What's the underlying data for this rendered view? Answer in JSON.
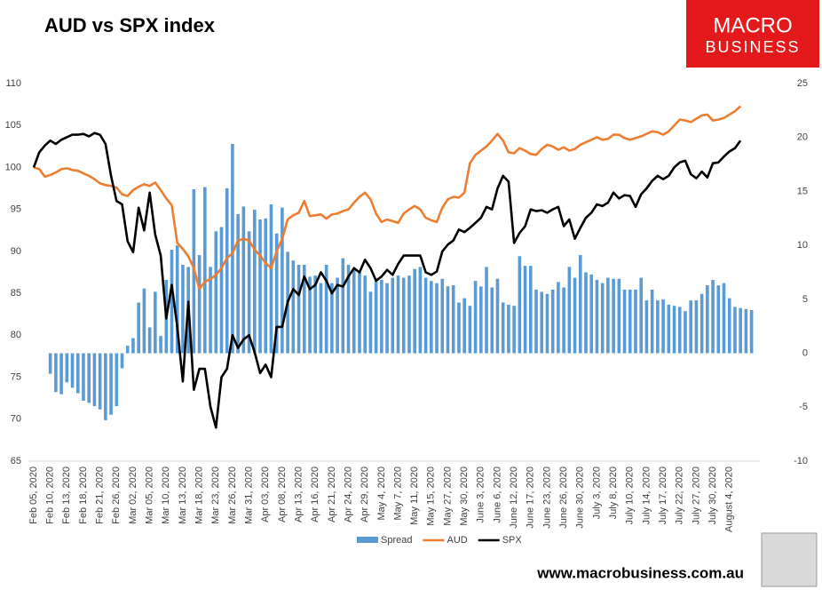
{
  "chart_data": {
    "type": "bar",
    "title": "AUD vs SPX index",
    "logo": [
      "MACRO",
      "BUSINESS"
    ],
    "footer": "www.macrobusiness.com.au",
    "categories": [
      "Feb 05, 2020",
      null,
      null,
      "Feb 10, 2020",
      null,
      null,
      "Feb 13, 2020",
      null,
      null,
      "Feb 18, 2020",
      null,
      null,
      "Feb 21, 2020",
      null,
      null,
      "Feb 26, 2020",
      null,
      null,
      "Mar 02, 2020",
      null,
      null,
      "Mar 05, 2020",
      null,
      null,
      "Mar 10, 2020",
      null,
      null,
      "Mar 13, 2020",
      null,
      null,
      "Mar 18, 2020",
      null,
      null,
      "Mar 23, 2020",
      null,
      null,
      "Mar 26, 2020",
      null,
      null,
      "Mar 31, 2020",
      null,
      null,
      "Apr 03, 2020",
      null,
      null,
      "Apr 08, 2020",
      null,
      null,
      "Apr 13, 2020",
      null,
      null,
      "Apr 16, 2020",
      null,
      null,
      "Apr 21, 2020",
      null,
      null,
      "Apr 24, 2020",
      null,
      null,
      "Apr 29, 2020",
      null,
      null,
      "May 4, 2020",
      null,
      null,
      "May 7, 2020",
      null,
      null,
      "May 11, 2020",
      null,
      null,
      "May 15, 2020",
      null,
      null,
      "May 27, 2020",
      null,
      null,
      "May 30, 2020",
      null,
      null,
      "June 3, 2020",
      null,
      null,
      "June 6, 2020",
      null,
      null,
      "June 12, 2020",
      null,
      null,
      "June 17, 2020",
      null,
      null,
      "June 23, 2020",
      null,
      null,
      "June 26, 2020",
      null,
      null,
      "June 30, 2020",
      null,
      null,
      "July 3, 2020",
      null,
      null,
      "July 8, 2020",
      null,
      null,
      "July 10, 2020",
      null,
      null,
      "July 14, 2020",
      null,
      null,
      "July 17, 2020",
      null,
      null,
      "July 22, 2020",
      null,
      null,
      "July 27, 2020",
      null,
      null,
      "July 30, 2020",
      null,
      null,
      "August 4, 2020",
      null,
      null,
      null,
      null
    ],
    "series": [
      {
        "name": "Spread",
        "type": "bar",
        "axis": "y2",
        "color": "#5b9bd5",
        "values": [
          null,
          null,
          null,
          -1.9,
          -3.6,
          -3.8,
          -2.7,
          -3.2,
          -3.7,
          -4.4,
          -4.6,
          -4.9,
          -5.2,
          -6.2,
          -5.7,
          -4.9,
          -1.4,
          0.7,
          1.4,
          4.7,
          6.0,
          2.4,
          5.7,
          1.6,
          6.8,
          9.6,
          10.0,
          8.2,
          8.0,
          15.2,
          9.1,
          15.4,
          8.0,
          11.3,
          11.7,
          15.3,
          19.4,
          12.9,
          13.6,
          11.3,
          13.3,
          12.4,
          12.5,
          13.8,
          11.1,
          13.5,
          9.4,
          8.6,
          8.2,
          8.2,
          7.1,
          7.2,
          6.5,
          8.2,
          6.5,
          7.0,
          8.8,
          8.2,
          7.7,
          7.5,
          7.2,
          5.7,
          6.7,
          6.8,
          6.5,
          7.0,
          7.2,
          7.0,
          7.2,
          7.8,
          8.0,
          7.0,
          6.7,
          6.5,
          6.9,
          6.2,
          6.3,
          4.7,
          5.1,
          4.4,
          6.7,
          6.2,
          8.0,
          6.1,
          6.9,
          4.7,
          4.5,
          4.4,
          9.0,
          8.1,
          8.1,
          5.9,
          5.7,
          5.5,
          5.9,
          6.6,
          6.1,
          8.0,
          7.0,
          9.1,
          7.5,
          7.3,
          6.8,
          6.5,
          7.0,
          6.9,
          6.9,
          5.9,
          5.9,
          5.9,
          7.0,
          4.9,
          5.9,
          4.9,
          5.0,
          4.5,
          4.4,
          4.3,
          3.9,
          4.9,
          4.9,
          5.5,
          6.3,
          6.8,
          6.3,
          6.5,
          5.1,
          4.3,
          4.2,
          4.1,
          4.0
        ]
      },
      {
        "name": "AUD",
        "type": "line",
        "color": "#ed7d31",
        "values": [
          100,
          99.8,
          98.9,
          99.1,
          99.4,
          99.8,
          99.9,
          99.7,
          99.6,
          99.3,
          99.0,
          98.6,
          98.1,
          97.9,
          97.8,
          97.6,
          96.8,
          96.6,
          97.3,
          97.7,
          98.0,
          97.8,
          98.2,
          97.3,
          96.3,
          95.5,
          91.0,
          90.3,
          89.4,
          88.0,
          85.5,
          86.4,
          86.7,
          87.2,
          88.0,
          89.2,
          89.8,
          91.3,
          91.5,
          91.3,
          90.2,
          89.5,
          88.6,
          88.0,
          90.0,
          91.5,
          93.8,
          94.3,
          94.6,
          96.0,
          94.2,
          94.3,
          94.4,
          93.9,
          94.4,
          94.5,
          94.8,
          95.0,
          95.8,
          96.5,
          97.0,
          96.2,
          94.5,
          93.5,
          93.8,
          93.6,
          93.4,
          94.5,
          95.0,
          95.4,
          95.0,
          94.0,
          93.7,
          93.5,
          95.2,
          96.2,
          96.5,
          96.4,
          97.0,
          100.5,
          101.5,
          102.0,
          102.5,
          103.2,
          104.0,
          103.2,
          101.8,
          101.7,
          102.3,
          102.0,
          101.6,
          101.5,
          102.2,
          102.7,
          102.5,
          102.1,
          102.4,
          102.0,
          102.2,
          102.7,
          103.0,
          103.3,
          103.6,
          103.3,
          103.4,
          103.9,
          103.9,
          103.5,
          103.3,
          103.5,
          103.7,
          104.0,
          104.3,
          104.2,
          103.9,
          104.3,
          105.0,
          105.7,
          105.6,
          105.4,
          105.8,
          106.2,
          106.3,
          105.6,
          105.7,
          105.9,
          106.3,
          106.7,
          107.3,
          null,
          null
        ]
      },
      {
        "name": "SPX",
        "type": "line",
        "color": "#000000",
        "values": [
          100,
          101.8,
          102.6,
          103.2,
          102.8,
          103.3,
          103.6,
          103.9,
          103.9,
          104.0,
          103.7,
          104.1,
          103.9,
          102.8,
          99.0,
          96.0,
          95.6,
          91.2,
          89.9,
          95.2,
          92.5,
          97.0,
          92.0,
          89.5,
          82.0,
          86.0,
          81.0,
          74.5,
          84.0,
          73.5,
          76.0,
          76.0,
          71.5,
          69.0,
          75.0,
          76.0,
          80.0,
          78.5,
          79.5,
          80.0,
          78.0,
          75.5,
          76.5,
          75.0,
          81.0,
          81.0,
          84.0,
          85.5,
          84.8,
          87.0,
          85.5,
          86.0,
          87.5,
          86.5,
          85.0,
          86.0,
          85.8,
          87.0,
          88.0,
          87.5,
          89.0,
          88.0,
          86.5,
          87.0,
          87.8,
          87.2,
          88.5,
          89.5,
          89.5,
          89.5,
          89.5,
          87.5,
          87.2,
          87.6,
          90.0,
          90.8,
          91.3,
          92.6,
          92.3,
          92.8,
          93.4,
          94.0,
          95.3,
          95.0,
          97.5,
          99.0,
          98.3,
          91.0,
          92.2,
          93.0,
          95.0,
          94.8,
          94.9,
          94.6,
          95.0,
          95.3,
          93.0,
          93.8,
          91.5,
          92.8,
          94.0,
          94.6,
          95.6,
          95.4,
          95.8,
          97.0,
          96.3,
          96.7,
          96.6,
          95.3,
          96.8,
          97.5,
          98.4,
          99.0,
          98.6,
          99.0,
          100.0,
          100.6,
          100.8,
          99.2,
          98.7,
          99.5,
          98.8,
          100.5,
          100.6,
          101.3,
          101.9,
          102.3,
          103.2,
          null,
          null
        ]
      }
    ],
    "ylim": [
      65,
      110
    ],
    "yticks": [
      65,
      70,
      75,
      80,
      85,
      90,
      95,
      100,
      105,
      110
    ],
    "y2lim": [
      -10,
      25
    ],
    "y2ticks": [
      -10,
      -5,
      0,
      5,
      10,
      15,
      20,
      25
    ],
    "grid": false,
    "legend": "bottom"
  }
}
